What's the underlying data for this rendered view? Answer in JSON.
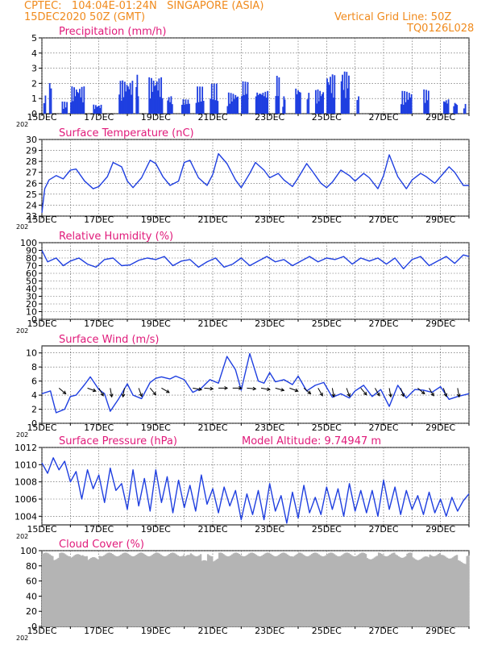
{
  "header": {
    "line1": "CPTEC:   104:04E-01:24N   SINGAPORE (ASIA)",
    "line2": "15DEC2020 50Z (GMT)",
    "grid_note": "Vertical Grid Line: 50Z",
    "model_id": "TQ0126L028"
  },
  "colors": {
    "header": "#f08a1c",
    "title": "#e01a7a",
    "series": "#1f3fe0",
    "cloud": "#b4b4b4",
    "grid": "#555555"
  },
  "x_tick_labels": [
    "15DEC",
    "17DEC",
    "19DEC",
    "21DEC",
    "23DEC",
    "25DEC",
    "27DEC",
    "29DEC"
  ],
  "year_fragment": "202",
  "chart_data": [
    {
      "id": "precip",
      "type": "bar",
      "title": "Precipitation (mm/h)",
      "ylim": [
        0,
        5
      ],
      "yticks": [
        "0",
        "1",
        "2",
        "3",
        "4",
        "5"
      ],
      "bursts": [
        [
          0.05,
          0.15,
          1.2
        ],
        [
          0.25,
          0.35,
          2.5
        ],
        [
          0.7,
          0.9,
          0.8
        ],
        [
          1.0,
          1.5,
          1.8
        ],
        [
          1.8,
          2.1,
          0.6
        ],
        [
          2.7,
          3.2,
          2.2
        ],
        [
          3.3,
          3.4,
          2.6
        ],
        [
          3.75,
          4.25,
          2.4
        ],
        [
          4.4,
          4.6,
          1.2
        ],
        [
          4.9,
          5.2,
          1.0
        ],
        [
          5.4,
          5.7,
          1.8
        ],
        [
          5.9,
          6.2,
          2.0
        ],
        [
          6.5,
          6.9,
          1.4
        ],
        [
          7.0,
          7.25,
          2.2
        ],
        [
          7.5,
          7.95,
          1.6
        ],
        [
          8.2,
          8.35,
          2.5
        ],
        [
          8.45,
          8.55,
          1.2
        ],
        [
          8.9,
          9.1,
          1.8
        ],
        [
          9.3,
          9.4,
          1.6
        ],
        [
          9.6,
          9.9,
          1.6
        ],
        [
          10.0,
          10.3,
          2.6
        ],
        [
          10.5,
          10.8,
          2.8
        ],
        [
          11.05,
          11.15,
          1.2
        ],
        [
          12.6,
          13.0,
          1.5
        ],
        [
          13.4,
          13.6,
          1.6
        ],
        [
          14.1,
          14.3,
          1.0
        ],
        [
          14.45,
          14.6,
          0.8
        ],
        [
          14.8,
          14.9,
          0.7
        ]
      ]
    },
    {
      "id": "temp",
      "type": "line",
      "title": "Surface Temperature (nC)",
      "ylim": [
        23,
        30
      ],
      "yticks": [
        "23",
        "24",
        "25",
        "26",
        "27",
        "28",
        "29",
        "30"
      ],
      "x": [
        0,
        0.1,
        0.25,
        0.5,
        0.75,
        1.0,
        1.2,
        1.5,
        1.8,
        2.0,
        2.3,
        2.5,
        2.8,
        3.0,
        3.2,
        3.5,
        3.8,
        4.0,
        4.25,
        4.5,
        4.8,
        5.0,
        5.2,
        5.5,
        5.8,
        6.0,
        6.2,
        6.5,
        6.8,
        7.0,
        7.3,
        7.5,
        7.8,
        8.0,
        8.3,
        8.5,
        8.8,
        9.0,
        9.3,
        9.5,
        9.8,
        10.0,
        10.2,
        10.5,
        10.8,
        11.0,
        11.3,
        11.5,
        11.8,
        12.0,
        12.2,
        12.5,
        12.8,
        13.0,
        13.3,
        13.5,
        13.8,
        14.0,
        14.3,
        14.5,
        14.8,
        15.0
      ],
      "values": [
        23.3,
        25.5,
        26.3,
        26.7,
        26.4,
        27.2,
        27.3,
        26.2,
        25.5,
        25.7,
        26.6,
        27.9,
        27.5,
        26.2,
        25.6,
        26.5,
        28.1,
        27.8,
        26.6,
        25.8,
        26.2,
        27.9,
        28.1,
        26.5,
        25.8,
        26.8,
        28.7,
        27.8,
        26.3,
        25.6,
        26.9,
        27.9,
        27.2,
        26.5,
        26.9,
        26.3,
        25.7,
        26.5,
        27.8,
        27.1,
        26.0,
        25.6,
        26.1,
        27.2,
        26.7,
        26.2,
        26.9,
        26.5,
        25.5,
        26.7,
        28.6,
        26.6,
        25.5,
        26.3,
        26.9,
        26.6,
        26.0,
        26.6,
        27.5,
        27.0,
        25.8,
        25.8
      ]
    },
    {
      "id": "rh",
      "type": "line",
      "title": "Relative Humidity (%)",
      "ylim": [
        0,
        100
      ],
      "yticks": [
        "0",
        "10",
        "20",
        "30",
        "40",
        "50",
        "60",
        "70",
        "80",
        "90",
        "100"
      ],
      "x": [
        0,
        0.2,
        0.5,
        0.75,
        1.0,
        1.3,
        1.6,
        1.9,
        2.2,
        2.5,
        2.8,
        3.1,
        3.4,
        3.7,
        4.0,
        4.3,
        4.6,
        4.9,
        5.2,
        5.5,
        5.8,
        6.1,
        6.4,
        6.7,
        7.0,
        7.3,
        7.6,
        7.9,
        8.2,
        8.5,
        8.8,
        9.1,
        9.4,
        9.7,
        10.0,
        10.3,
        10.6,
        10.9,
        11.2,
        11.5,
        11.8,
        12.1,
        12.4,
        12.7,
        13.0,
        13.3,
        13.6,
        13.9,
        14.2,
        14.5,
        14.8,
        15.0
      ],
      "values": [
        90,
        75,
        80,
        70,
        76,
        80,
        72,
        68,
        78,
        80,
        70,
        71,
        77,
        80,
        78,
        82,
        70,
        76,
        78,
        68,
        75,
        80,
        68,
        72,
        80,
        70,
        76,
        82,
        75,
        78,
        70,
        76,
        82,
        75,
        80,
        78,
        82,
        72,
        80,
        76,
        80,
        72,
        80,
        66,
        78,
        82,
        70,
        76,
        82,
        73,
        84,
        82
      ]
    },
    {
      "id": "wind",
      "type": "line",
      "title": "Surface Wind (m/s)",
      "ylim": [
        0,
        11
      ],
      "yticks": [
        "0",
        "2",
        "4",
        "6",
        "8",
        "10"
      ],
      "x": [
        0,
        0.3,
        0.5,
        0.8,
        1.0,
        1.2,
        1.5,
        1.7,
        2.0,
        2.2,
        2.4,
        2.7,
        3.0,
        3.2,
        3.5,
        3.8,
        4.0,
        4.2,
        4.5,
        4.7,
        5.0,
        5.3,
        5.6,
        5.9,
        6.2,
        6.5,
        6.8,
        7.0,
        7.3,
        7.6,
        7.8,
        8.0,
        8.2,
        8.5,
        8.8,
        9.0,
        9.3,
        9.6,
        9.9,
        10.2,
        10.5,
        10.8,
        11.0,
        11.3,
        11.6,
        11.9,
        12.2,
        12.5,
        12.8,
        13.1,
        13.4,
        13.7,
        14.0,
        14.3,
        14.6,
        15.0
      ],
      "values": [
        4.2,
        4.6,
        1.5,
        2.0,
        3.8,
        4.0,
        5.5,
        6.6,
        4.8,
        4.2,
        1.7,
        3.5,
        5.6,
        4.0,
        3.5,
        5.8,
        6.4,
        6.6,
        6.3,
        6.7,
        6.2,
        4.4,
        5.0,
        6.2,
        5.7,
        9.5,
        7.6,
        4.7,
        9.9,
        6.0,
        5.7,
        7.2,
        5.9,
        6.2,
        5.5,
        6.7,
        4.6,
        5.4,
        5.8,
        3.7,
        4.2,
        3.6,
        4.6,
        5.4,
        3.8,
        4.8,
        2.4,
        5.4,
        3.6,
        4.8,
        4.7,
        4.4,
        5.2,
        3.4,
        3.8,
        4.2
      ]
    },
    {
      "id": "press",
      "type": "line",
      "title": "Surface Pressure (hPa)",
      "ylim": [
        1003,
        1012
      ],
      "yticks": [
        "1004",
        "1006",
        "1008",
        "1010",
        "1012"
      ],
      "annotation": "Model Altitude: 9.74947 m",
      "x": [
        0,
        0.2,
        0.4,
        0.6,
        0.8,
        1.0,
        1.2,
        1.4,
        1.6,
        1.8,
        2.0,
        2.2,
        2.4,
        2.6,
        2.8,
        3.0,
        3.2,
        3.4,
        3.6,
        3.8,
        4.0,
        4.2,
        4.4,
        4.6,
        4.8,
        5.0,
        5.2,
        5.4,
        5.6,
        5.8,
        6.0,
        6.2,
        6.4,
        6.6,
        6.8,
        7.0,
        7.2,
        7.4,
        7.6,
        7.8,
        8.0,
        8.2,
        8.4,
        8.6,
        8.8,
        9.0,
        9.2,
        9.4,
        9.6,
        9.8,
        10.0,
        10.2,
        10.4,
        10.6,
        10.8,
        11.0,
        11.2,
        11.4,
        11.6,
        11.8,
        12.0,
        12.2,
        12.4,
        12.6,
        12.8,
        13.0,
        13.2,
        13.4,
        13.6,
        13.8,
        14.0,
        14.2,
        14.4,
        14.6,
        14.8,
        15.0
      ],
      "values": [
        1010.2,
        1009.0,
        1010.8,
        1009.4,
        1010.4,
        1008.0,
        1009.2,
        1006.0,
        1009.4,
        1007.2,
        1008.8,
        1005.6,
        1009.6,
        1007.0,
        1007.8,
        1004.8,
        1009.4,
        1005.2,
        1008.4,
        1004.6,
        1009.4,
        1005.6,
        1008.6,
        1004.4,
        1008.2,
        1005.0,
        1007.6,
        1004.6,
        1008.8,
        1005.4,
        1007.2,
        1004.4,
        1007.4,
        1005.2,
        1007.0,
        1003.6,
        1006.6,
        1004.2,
        1007.0,
        1003.6,
        1007.8,
        1004.6,
        1006.4,
        1003.2,
        1006.8,
        1003.8,
        1007.6,
        1004.4,
        1006.2,
        1004.2,
        1007.4,
        1004.8,
        1007.2,
        1004.0,
        1007.8,
        1004.6,
        1007.0,
        1004.4,
        1007.0,
        1004.0,
        1008.2,
        1004.8,
        1007.4,
        1004.2,
        1007.0,
        1004.8,
        1006.4,
        1004.2,
        1006.8,
        1004.4,
        1006.0,
        1004.0,
        1006.2,
        1004.6,
        1005.8,
        1006.6
      ]
    },
    {
      "id": "cloud",
      "type": "area",
      "title": "Cloud Cover (%)",
      "ylim": [
        0,
        100
      ],
      "yticks": [
        "0",
        "20",
        "40",
        "60",
        "80",
        "100"
      ],
      "value": 95,
      "dips": [
        [
          0.4,
          0.6,
          90
        ],
        [
          1.0,
          1.4,
          93
        ],
        [
          1.6,
          2.0,
          89
        ],
        [
          5.0,
          5.2,
          92
        ],
        [
          5.6,
          5.8,
          85
        ],
        [
          5.4,
          5.42,
          0
        ],
        [
          6.0,
          6.2,
          88
        ],
        [
          8.8,
          9.0,
          94
        ],
        [
          11.4,
          11.8,
          91
        ],
        [
          12.4,
          12.8,
          93
        ],
        [
          13.0,
          13.6,
          90
        ],
        [
          14.0,
          14.6,
          92
        ],
        [
          14.6,
          14.9,
          85
        ]
      ]
    }
  ]
}
